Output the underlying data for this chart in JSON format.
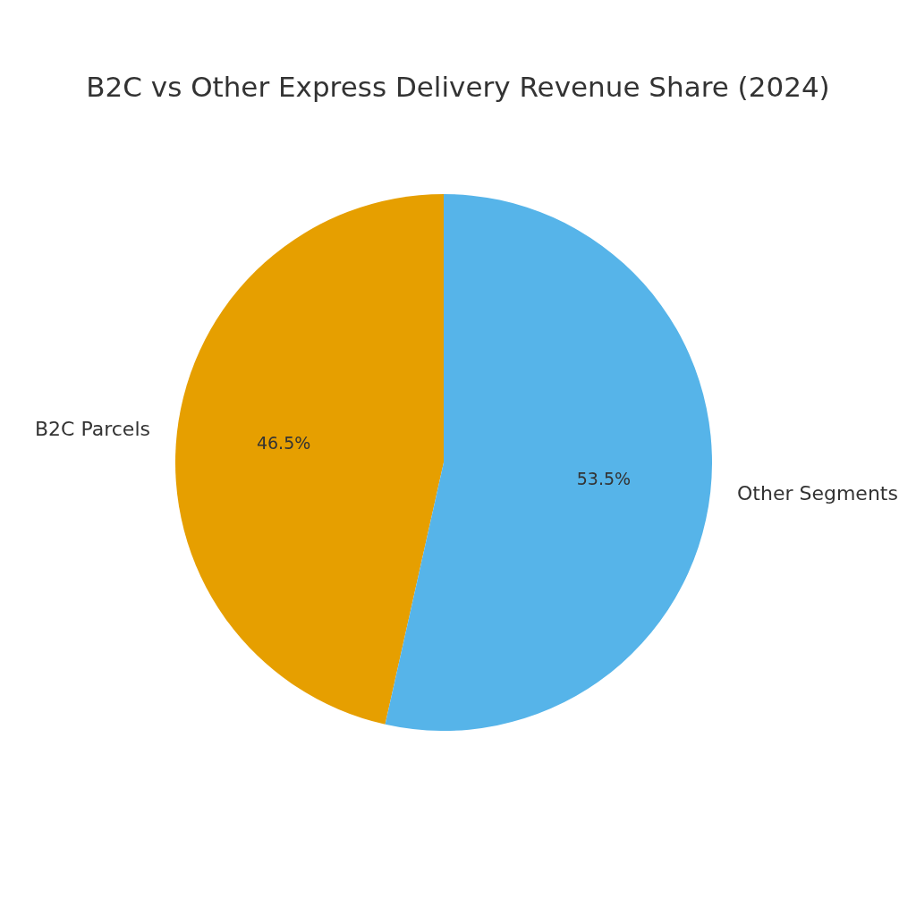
{
  "chart_data": {
    "type": "pie",
    "title": "B2C vs Other Express Delivery Revenue Share (2024)",
    "categories": [
      "B2C Parcels",
      "Other Segments"
    ],
    "values": [
      46.5,
      53.5
    ],
    "colors": [
      "#e69f00",
      "#56b4e9"
    ],
    "value_labels": [
      "46.5%",
      "53.5%"
    ]
  }
}
